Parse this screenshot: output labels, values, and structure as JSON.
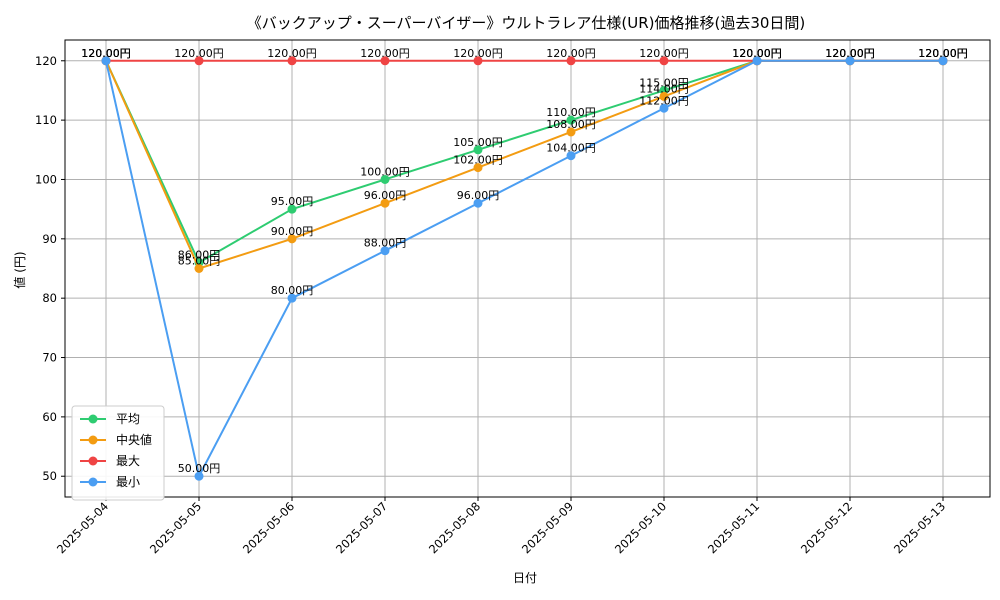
{
  "chart_data": {
    "type": "line",
    "title": "《バックアップ・スーパーバイザー》ウルトラレア仕様(UR)価格推移(過去30日間)",
    "xlabel": "日付",
    "ylabel": "値 (円)",
    "ylim": [
      46.5,
      123.5
    ],
    "yticks": [
      50,
      60,
      70,
      80,
      90,
      100,
      110,
      120
    ],
    "grid": true,
    "legend_position": "lower-left",
    "categories": [
      "2025-05-04",
      "2025-05-05",
      "2025-05-06",
      "2025-05-07",
      "2025-05-08",
      "2025-05-09",
      "2025-05-10",
      "2025-05-11",
      "2025-05-12",
      "2025-05-13"
    ],
    "value_suffix": "円",
    "series": [
      {
        "name": "平均",
        "color": "#2ecc71",
        "values": [
          120,
          86,
          95,
          100,
          105,
          110,
          115,
          120,
          120,
          120
        ]
      },
      {
        "name": "中央値",
        "color": "#f39c12",
        "values": [
          120,
          85,
          90,
          96,
          102,
          108,
          114,
          120,
          120,
          120
        ]
      },
      {
        "name": "最大",
        "color": "#ef4444",
        "values": [
          120,
          120,
          120,
          120,
          120,
          120,
          120,
          120,
          120,
          120
        ]
      },
      {
        "name": "最小",
        "color": "#4b9ef2",
        "values": [
          120,
          50,
          80,
          88,
          96,
          104,
          112,
          120,
          120,
          120
        ]
      }
    ]
  }
}
